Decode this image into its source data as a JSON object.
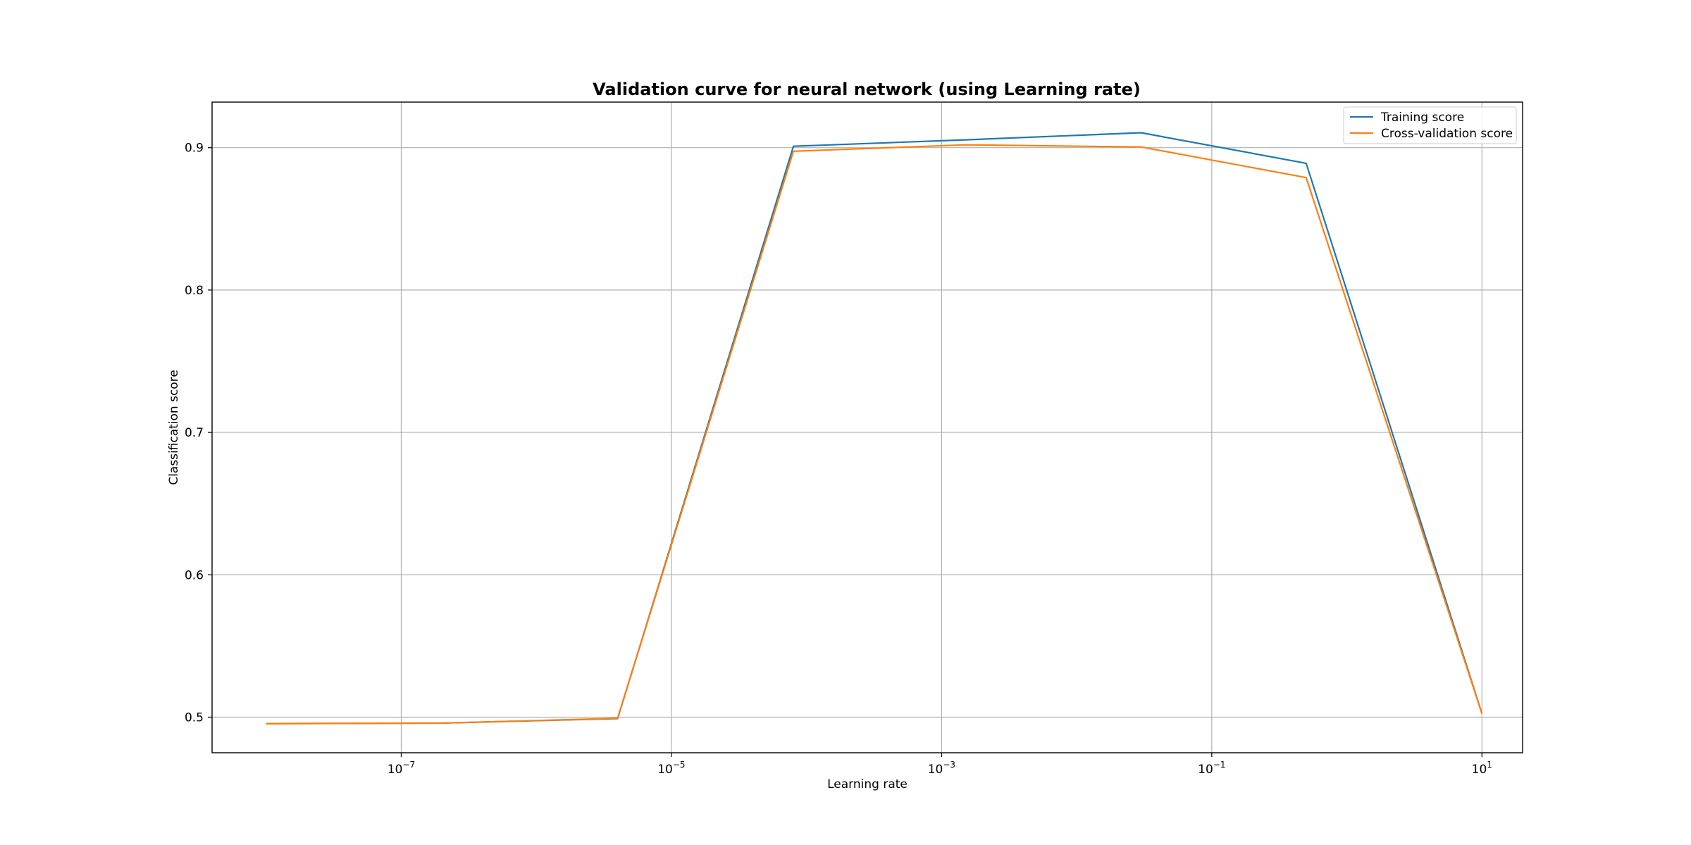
{
  "chart_data": {
    "type": "line",
    "title": "Validation curve for neural network (using Learning rate)",
    "xlabel": "Learning rate",
    "ylabel": "Classification score",
    "xscale": "log",
    "xlim": [
      3.98e-09,
      20
    ],
    "ylim": [
      0.475,
      0.932
    ],
    "grid": true,
    "legend_position": "top-right",
    "x": [
      1e-08,
      2e-07,
      4e-06,
      8e-05,
      0.0015,
      0.03,
      0.5,
      10
    ],
    "series": [
      {
        "name": "Training score",
        "color": "#1f77b4",
        "values": [
          0.4955,
          0.4958,
          0.499,
          0.901,
          0.9055,
          0.9105,
          0.889,
          0.5025
        ]
      },
      {
        "name": "Cross-validation score",
        "color": "#ff7f0e",
        "values": [
          0.4955,
          0.4958,
          0.4992,
          0.8975,
          0.902,
          0.9005,
          0.879,
          0.5025
        ]
      }
    ],
    "x_ticks": [
      {
        "value": 1e-07,
        "base": "10",
        "exp": "−7"
      },
      {
        "value": 1e-05,
        "base": "10",
        "exp": "−5"
      },
      {
        "value": 0.001,
        "base": "10",
        "exp": "−3"
      },
      {
        "value": 0.1,
        "base": "10",
        "exp": "−1"
      },
      {
        "value": 10,
        "base": "10",
        "exp": "1"
      }
    ],
    "y_ticks": [
      0.5,
      0.6,
      0.7,
      0.8,
      0.9
    ]
  }
}
